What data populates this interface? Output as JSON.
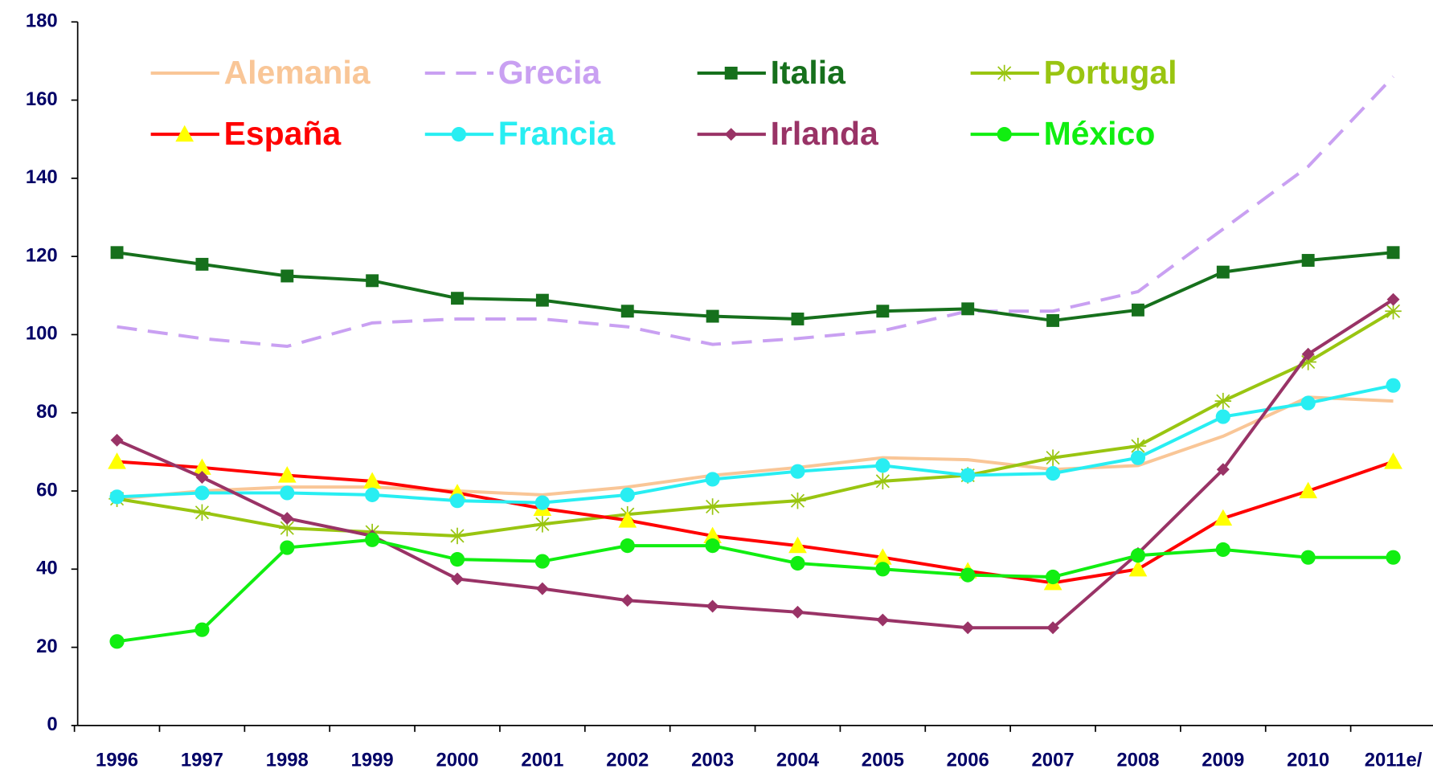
{
  "chart_data": {
    "type": "line",
    "categories": [
      "1996",
      "1997",
      "1998",
      "1999",
      "2000",
      "2001",
      "2002",
      "2003",
      "2004",
      "2005",
      "2006",
      "2007",
      "2008",
      "2009",
      "2010",
      "2011e/"
    ],
    "ylim": [
      0,
      180
    ],
    "yticks": [
      0,
      20,
      40,
      60,
      80,
      100,
      120,
      140,
      160,
      180
    ],
    "series": [
      {
        "name": "Alemania",
        "color": "#f9c697",
        "marker": "none",
        "values": [
          58,
          60,
          61,
          61,
          60,
          59,
          61,
          64,
          66,
          68.5,
          68,
          65.5,
          66.5,
          74,
          84,
          83
        ]
      },
      {
        "name": "Grecia",
        "color": "#c9a0f2",
        "dash": true,
        "marker": "none",
        "values": [
          102,
          99,
          97,
          103,
          104,
          104,
          102,
          97.5,
          99,
          101,
          106,
          106,
          111,
          127,
          143,
          166
        ]
      },
      {
        "name": "Italia",
        "color": "#16701c",
        "marker": "square",
        "values": [
          121,
          118,
          115,
          113.8,
          109.3,
          108.8,
          106,
          104.7,
          104,
          106,
          106.6,
          103.6,
          106.3,
          116,
          119,
          121
        ]
      },
      {
        "name": "Portugal",
        "color": "#99c511",
        "marker": "star",
        "values": [
          58,
          54.5,
          50.5,
          49.5,
          48.5,
          51.5,
          54,
          56,
          57.5,
          62.5,
          64,
          68.5,
          71.5,
          83,
          93,
          106
        ]
      },
      {
        "name": "España",
        "color": "#ff0000",
        "marker": "triangle",
        "marker_color": "#ffff00",
        "values": [
          67.5,
          66,
          64,
          62.5,
          59.5,
          55.5,
          52.5,
          48.5,
          46,
          43,
          39.5,
          36.5,
          40,
          53,
          60,
          67.5
        ]
      },
      {
        "name": "Francia",
        "color": "#28eef2",
        "marker": "circle",
        "values": [
          58.5,
          59.5,
          59.5,
          59,
          57.5,
          57,
          59,
          63,
          65,
          66.5,
          64,
          64.5,
          68.5,
          79,
          82.5,
          87
        ]
      },
      {
        "name": "Irlanda",
        "color": "#993366",
        "marker": "diamond",
        "values": [
          73,
          63.5,
          53,
          48.5,
          37.5,
          35,
          32,
          30.5,
          29,
          27,
          25,
          25,
          44,
          65.5,
          95,
          109
        ]
      },
      {
        "name": "México",
        "color": "#11ee11",
        "marker": "circle",
        "values": [
          21.5,
          24.5,
          45.5,
          47.5,
          42.5,
          42,
          46,
          46,
          41.5,
          40,
          38.5,
          38,
          43.5,
          45,
          43,
          43
        ]
      }
    ]
  }
}
